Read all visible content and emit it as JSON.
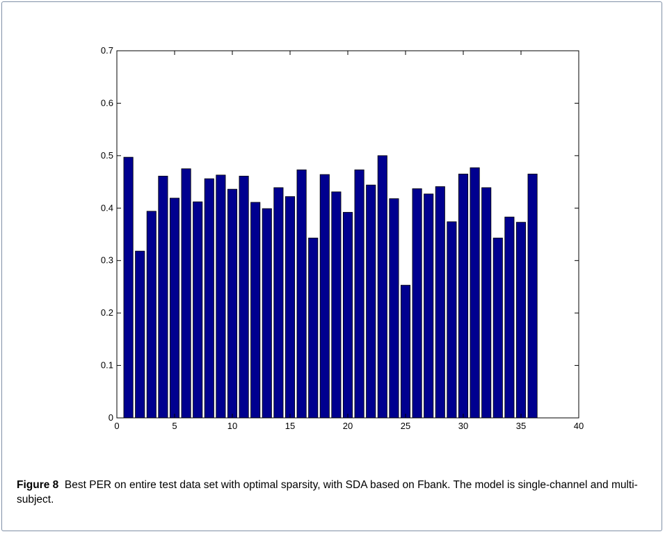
{
  "chart_data": {
    "type": "bar",
    "caption_label": "Figure 8",
    "caption": "Best PER on entire test data set with optimal sparsity, with SDA based on Fbank. The model is single-channel and multi-subject.",
    "x": [
      1,
      2,
      3,
      4,
      5,
      6,
      7,
      8,
      9,
      10,
      11,
      12,
      13,
      14,
      15,
      16,
      17,
      18,
      19,
      20,
      21,
      22,
      23,
      24,
      25,
      26,
      27,
      28,
      29,
      30,
      31,
      32,
      33,
      34,
      35,
      36
    ],
    "values": [
      0.497,
      0.318,
      0.394,
      0.461,
      0.419,
      0.475,
      0.412,
      0.456,
      0.463,
      0.436,
      0.461,
      0.411,
      0.399,
      0.439,
      0.422,
      0.473,
      0.343,
      0.464,
      0.431,
      0.392,
      0.473,
      0.444,
      0.5,
      0.418,
      0.253,
      0.437,
      0.427,
      0.441,
      0.374,
      0.465,
      0.477,
      0.439,
      0.343,
      0.383,
      0.373,
      0.465
    ],
    "color": "#00008f",
    "xlim": [
      0,
      40
    ],
    "xticks": [
      0,
      5,
      10,
      15,
      20,
      25,
      30,
      35,
      40
    ],
    "ylim": [
      0,
      0.7
    ],
    "yticks": [
      0,
      0.1,
      0.2,
      0.3,
      0.4,
      0.5,
      0.6,
      0.7
    ],
    "grid": false
  }
}
